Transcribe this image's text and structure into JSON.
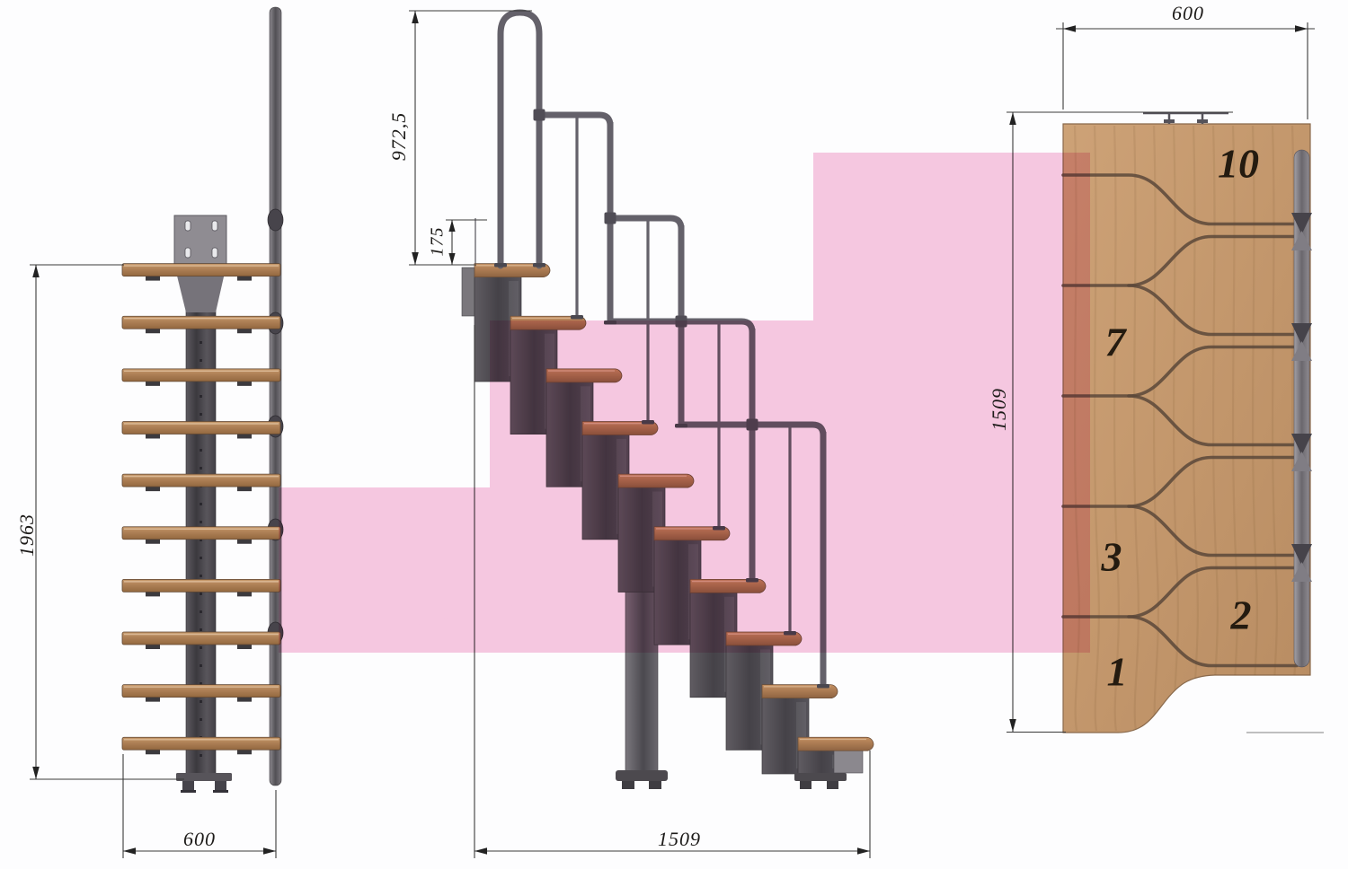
{
  "document": {
    "type": "technical-drawing",
    "subject": "Modular staircase — front, side and plan views with dimensions"
  },
  "colors": {
    "highlight_pink": "#f7c9e1",
    "wood_tread": "#b98a5e",
    "wood_panel": "#c99e73",
    "metal_dark": "#47444b",
    "metal_light": "#8a878c",
    "dimension_line": "#3a3a3a",
    "text": "#1c1a18"
  },
  "dimensions": {
    "front_height": "1963",
    "front_width": "600",
    "handrail_height": "972,5",
    "handrail_offset": "175",
    "side_length": "1509",
    "plan_width": "600",
    "plan_depth": "1509"
  },
  "plan": {
    "step_count": 10,
    "tread_numbers": [
      "10",
      "7",
      "3",
      "2",
      "1"
    ]
  }
}
